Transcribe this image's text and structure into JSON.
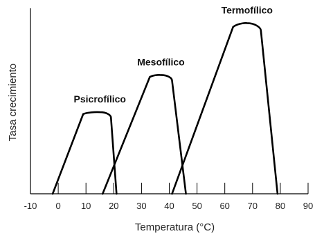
{
  "chart_data": {
    "type": "line",
    "title": "",
    "xlabel": "Temperatura (°C)",
    "ylabel": "Tasa crecimiento",
    "xlim": [
      -10,
      90
    ],
    "xticks": [
      -10,
      0,
      10,
      20,
      30,
      40,
      50,
      60,
      70,
      80,
      90
    ],
    "ylim": [
      0,
      100
    ],
    "y_ticks_shown": false,
    "grid": false,
    "legend": "none",
    "line_color": "#000000",
    "series": [
      {
        "name": "Psicrofílico",
        "points": [
          [
            -2,
            0
          ],
          [
            9,
            43
          ],
          [
            15,
            44
          ],
          [
            19,
            41
          ],
          [
            21,
            0
          ]
        ]
      },
      {
        "name": "Mesofílico",
        "points": [
          [
            16,
            0
          ],
          [
            33,
            63
          ],
          [
            37,
            64
          ],
          [
            41,
            61
          ],
          [
            46,
            0
          ]
        ]
      },
      {
        "name": "Termofílico",
        "points": [
          [
            41,
            0
          ],
          [
            63,
            90
          ],
          [
            68,
            92
          ],
          [
            73,
            88
          ],
          [
            79,
            0
          ]
        ]
      }
    ]
  }
}
